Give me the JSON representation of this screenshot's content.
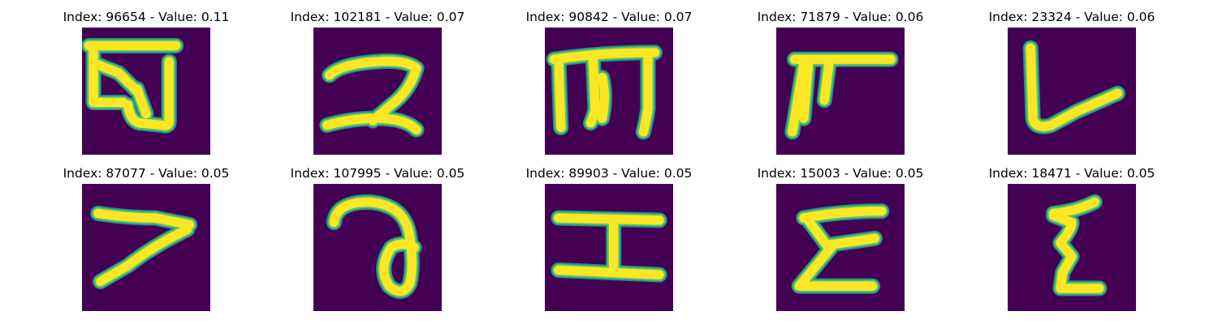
{
  "colors": {
    "background": "#440154",
    "edge": "#21908d",
    "mid": "#5ec962",
    "stroke": "#fde725"
  },
  "panels": [
    {
      "title": "Index: 96654 - Value: 0.11",
      "glyph": "ga"
    },
    {
      "title": "Index: 102181 - Value: 0.07",
      "glyph": "two"
    },
    {
      "title": "Index: 90842 - Value: 0.07",
      "glyph": "m"
    },
    {
      "title": "Index: 71879 - Value: 0.06",
      "glyph": "pa"
    },
    {
      "title": "Index: 23324 - Value: 0.06",
      "glyph": "la"
    },
    {
      "title": "Index: 87077 - Value: 0.05",
      "glyph": "seven"
    },
    {
      "title": "Index: 107995 - Value: 0.05",
      "glyph": "ra"
    },
    {
      "title": "Index: 89903 - Value: 0.05",
      "glyph": "i-beam"
    },
    {
      "title": "Index: 15003 - Value: 0.05",
      "glyph": "epsilon"
    },
    {
      "title": "Index: 18471 - Value: 0.05",
      "glyph": "xi"
    }
  ]
}
